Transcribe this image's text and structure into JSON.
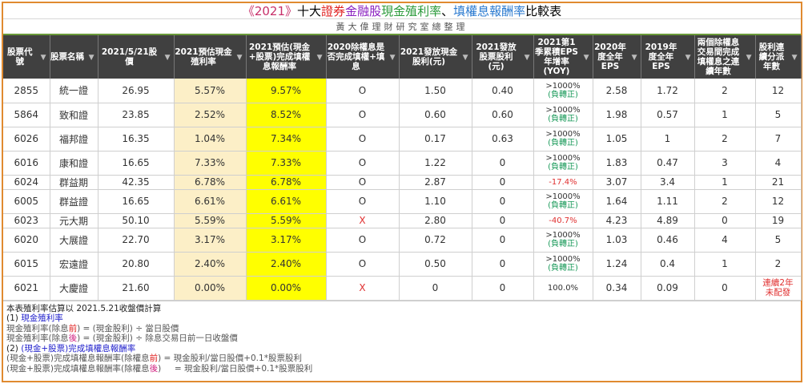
{
  "title": {
    "p1": "《2021》",
    "p2": "十大",
    "p3": "證券",
    "p4": "金融股",
    "p5": "現金殖利率",
    "p6": "、",
    "p7": "填權息報酬率",
    "p8": "比較表"
  },
  "subtitle": "黃大偉理財研究室總整理",
  "colors": {
    "border": "#e08a30",
    "header_bg": "#404040",
    "yield_bg": "#fcefc7",
    "return_bg": "#ffff00",
    "positive": "#1a9a5a",
    "negative": "#e03030"
  },
  "headers": [
    "股票代號",
    "股票名稱",
    "2021/5/21股價",
    "2021預估現金殖利率",
    "2021預估(現金+股票)完成填權息報酬率",
    "2020除權息是否完成填權+填息",
    "2021發放現金股利(元)",
    "2021發放股票股利(元)",
    "2021第1季累積EPS年增率(YOY)",
    "2020年度全年EPS",
    "2019年度全年EPS",
    "兩個除權息交易間完成填權息之連續年數",
    "股利連續分派年數"
  ],
  "rows": [
    {
      "code": "2855",
      "name": "統一證",
      "price": "26.95",
      "yield": "5.57%",
      "ret": "9.57%",
      "done": "O",
      "cash": "1.50",
      "stock": "0.40",
      "yoy": ">1000%",
      "yoy_note": "(負轉正)",
      "eps20": "2.58",
      "eps19": "1.72",
      "fill": "2",
      "years": "12"
    },
    {
      "code": "5864",
      "name": "致和證",
      "price": "23.85",
      "yield": "2.52%",
      "ret": "8.52%",
      "done": "O",
      "cash": "0.60",
      "stock": "0.60",
      "yoy": ">1000%",
      "yoy_note": "(負轉正)",
      "eps20": "1.98",
      "eps19": "0.57",
      "fill": "1",
      "years": "5"
    },
    {
      "code": "6026",
      "name": "福邦證",
      "price": "16.35",
      "yield": "1.04%",
      "ret": "7.34%",
      "done": "O",
      "cash": "0.17",
      "stock": "0.63",
      "yoy": ">1000%",
      "yoy_note": "(負轉正)",
      "eps20": "1.05",
      "eps19": "1",
      "fill": "2",
      "years": "7"
    },
    {
      "code": "6016",
      "name": "康和證",
      "price": "16.65",
      "yield": "7.33%",
      "ret": "7.33%",
      "done": "O",
      "cash": "1.22",
      "stock": "0",
      "yoy": ">1000%",
      "yoy_note": "(負轉正)",
      "eps20": "1.83",
      "eps19": "0.47",
      "fill": "3",
      "years": "4"
    },
    {
      "code": "6024",
      "name": "群益期",
      "price": "42.35",
      "yield": "6.78%",
      "ret": "6.78%",
      "done": "O",
      "cash": "2.87",
      "stock": "0",
      "yoy": "-17.4%",
      "yoy_note": "",
      "eps20": "3.07",
      "eps19": "3.4",
      "fill": "1",
      "years": "21"
    },
    {
      "code": "6005",
      "name": "群益證",
      "price": "16.65",
      "yield": "6.61%",
      "ret": "6.61%",
      "done": "O",
      "cash": "1.10",
      "stock": "0",
      "yoy": ">1000%",
      "yoy_note": "(負轉正)",
      "eps20": "1.64",
      "eps19": "1.11",
      "fill": "2",
      "years": "12"
    },
    {
      "code": "6023",
      "name": "元大期",
      "price": "50.10",
      "yield": "5.59%",
      "ret": "5.59%",
      "done": "X",
      "cash": "2.80",
      "stock": "0",
      "yoy": "-40.7%",
      "yoy_note": "",
      "eps20": "4.23",
      "eps19": "4.89",
      "fill": "0",
      "years": "19"
    },
    {
      "code": "6020",
      "name": "大展證",
      "price": "22.70",
      "yield": "3.17%",
      "ret": "3.17%",
      "done": "O",
      "cash": "0.72",
      "stock": "0",
      "yoy": ">1000%",
      "yoy_note": "(負轉正)",
      "eps20": "1.03",
      "eps19": "0.46",
      "fill": "4",
      "years": "5"
    },
    {
      "code": "6015",
      "name": "宏遠證",
      "price": "20.80",
      "yield": "2.40%",
      "ret": "2.40%",
      "done": "O",
      "cash": "0.50",
      "stock": "0",
      "yoy": ">1000%",
      "yoy_note": "(負轉正)",
      "eps20": "1.24",
      "eps19": "0.4",
      "fill": "1",
      "years": "2"
    },
    {
      "code": "6021",
      "name": "大慶證",
      "price": "21.60",
      "yield": "0.00%",
      "ret": "0.00%",
      "done": "X",
      "cash": "0",
      "stock": "0",
      "yoy": "100.0%",
      "yoy_note": "",
      "eps20": "0.34",
      "eps19": "0.09",
      "fill": "0",
      "years": "連續2年未配發"
    }
  ],
  "notes": {
    "n0": "本表殖利率估算以 2021.5.21收盤價計算",
    "n1a": "(1) ",
    "n1b": "現金殖利率",
    "n2a": "現金殖利率(除息",
    "n2b": "前",
    "n2c": ") = (現金股利) ÷ 當日股價",
    "n3a": "現金殖利率(除息",
    "n3b": "後",
    "n3c": ") = (現金股利) ÷ 除息交易日前一日收盤價",
    "n4a": "(2) ",
    "n4b": "(現金+股票)完成填權息報酬率",
    "n5a": "(現金+股票)完成填權息報酬率(除權息",
    "n5b": "前",
    "n5c": ") = 現金股利/當日股價+0.1*股票股利",
    "n6a": "(現金+股票)完成填權息報酬率(除權息",
    "n6b": "後",
    "n6c": ")     = 現金股利/當日股價+0.1*股票股利"
  }
}
